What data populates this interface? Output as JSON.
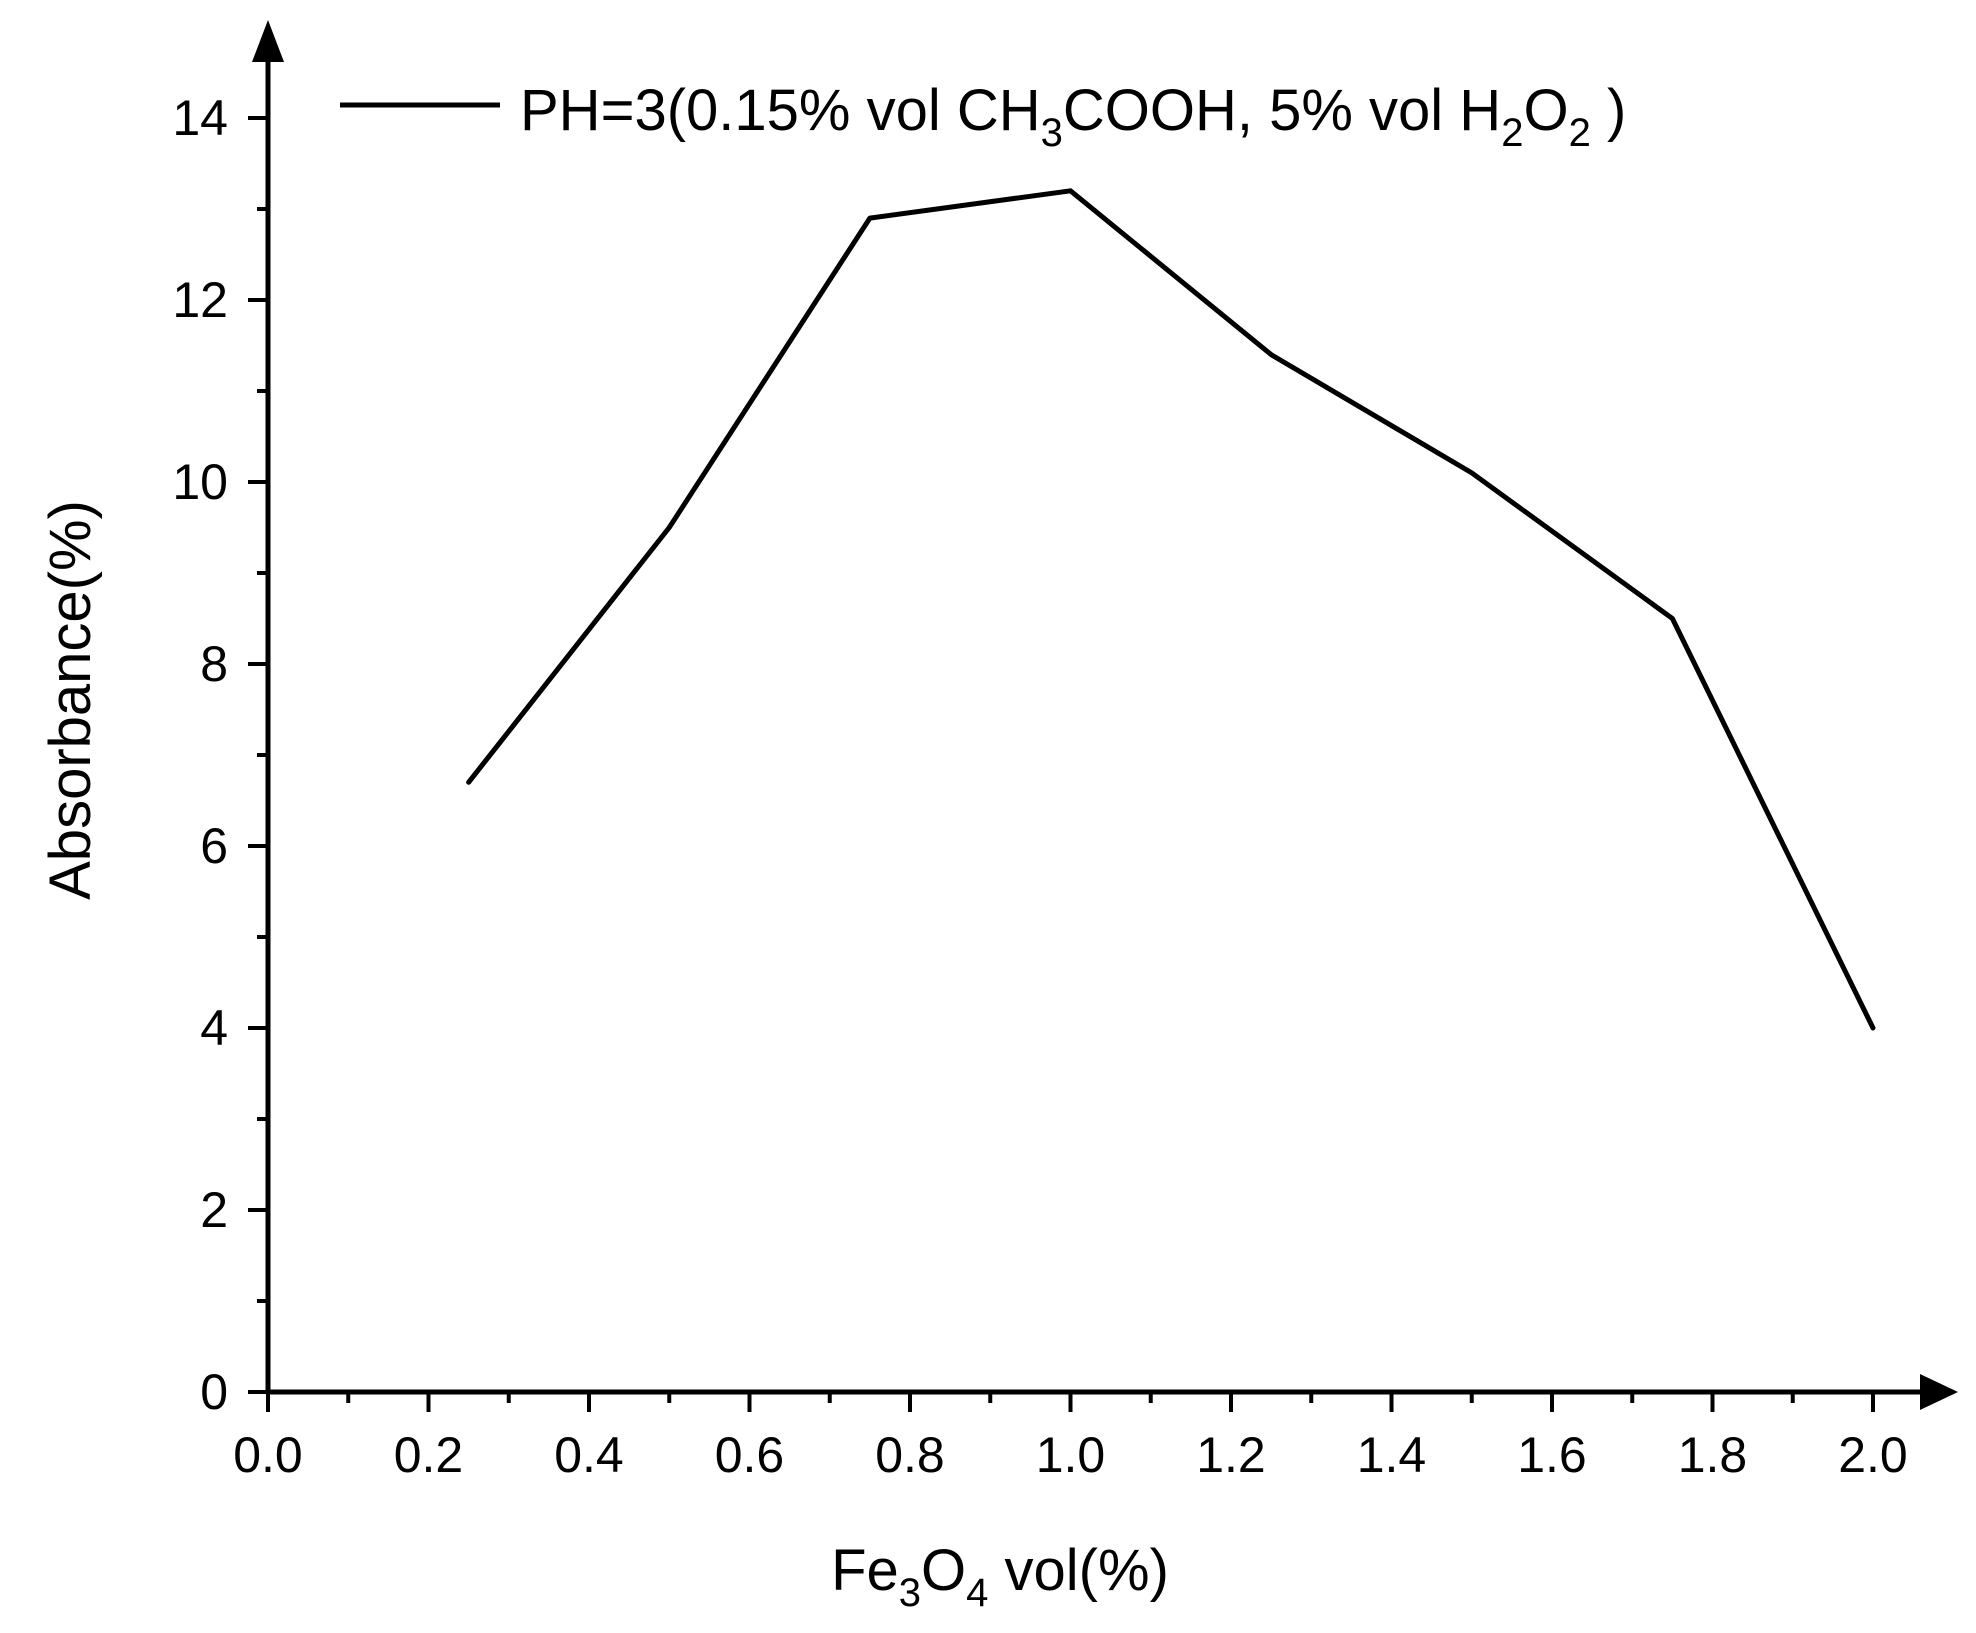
{
  "chart_data": {
    "type": "line",
    "x": [
      0.25,
      0.5,
      0.75,
      1.0,
      1.25,
      1.5,
      1.75,
      2.0
    ],
    "series": [
      {
        "name": "PH=3(0.15% vol CH3COOH, 5% vol H2O2 )",
        "values": [
          6.7,
          9.5,
          12.9,
          13.2,
          11.4,
          10.1,
          8.5,
          4.0
        ]
      }
    ],
    "xlabel": "Fe3O4 vol(%)",
    "ylabel": "Absorbance(%)",
    "xlim": [
      0.0,
      2.0
    ],
    "ylim": [
      0,
      14
    ],
    "x_ticks": [
      "0.0",
      "0.2",
      "0.4",
      "0.6",
      "0.8",
      "1.0",
      "1.2",
      "1.4",
      "1.6",
      "1.8",
      "2.0"
    ],
    "y_ticks": [
      "0",
      "2",
      "4",
      "6",
      "8",
      "10",
      "12",
      "14"
    ],
    "grid": false,
    "legend_position": "top",
    "line_color": "#000000"
  },
  "labels": {
    "xlabel_parts": [
      "Fe",
      "3",
      "O",
      "4",
      " vol(%)"
    ],
    "ylabel": "Absorbance(%)",
    "legend_parts": [
      "PH=3(0.15% vol CH",
      "3",
      "COOH, 5% vol H",
      "2",
      "O",
      "2",
      " )"
    ]
  }
}
